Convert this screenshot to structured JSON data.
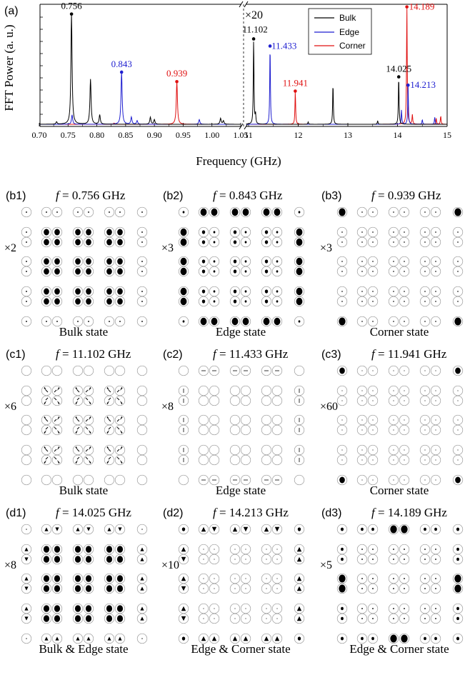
{
  "panel_a": {
    "label": "(a)",
    "ylabel": "FFT Power (a. u.)",
    "xlabel": "Frequency (GHz)",
    "scale_note": "×20",
    "legend": [
      {
        "name": "Bulk",
        "color": "#000000"
      },
      {
        "name": "Edge",
        "color": "#1f1fd0"
      },
      {
        "name": "Corner",
        "color": "#e01010"
      }
    ],
    "ticks_left": [
      "0.70",
      "0.75",
      "0.80",
      "0.85",
      "0.90",
      "0.95",
      "1.00",
      "1.05"
    ],
    "ticks_right": [
      "11",
      "12",
      "13",
      "14",
      "15"
    ]
  },
  "chart_data": {
    "type": "line",
    "xlabel": "Frequency (GHz)",
    "ylabel": "FFT Power (a. u.)",
    "x_ranges": [
      [
        0.7,
        1.05
      ],
      [
        10.95,
        15.0
      ]
    ],
    "right_segment_scale": 20,
    "peaks": [
      {
        "x": 0.756,
        "series": "Bulk",
        "label": "0.756"
      },
      {
        "x": 0.843,
        "series": "Edge",
        "label": "0.843"
      },
      {
        "x": 0.939,
        "series": "Corner",
        "label": "0.939"
      },
      {
        "x": 11.102,
        "series": "Bulk",
        "label": "11.102"
      },
      {
        "x": 11.433,
        "series": "Edge",
        "label": "11.433"
      },
      {
        "x": 11.941,
        "series": "Corner",
        "label": "11.941"
      },
      {
        "x": 14.025,
        "series": "Bulk",
        "label": "14.025"
      },
      {
        "x": 14.189,
        "series": "Corner",
        "label": "14.189"
      },
      {
        "x": 14.213,
        "series": "Edge",
        "label": "14.213"
      }
    ],
    "legend_position": "top-right",
    "grid": false
  },
  "panels": [
    {
      "id": "b1",
      "freq": "0.756 GHz",
      "mult": "×2",
      "state": "Bulk state"
    },
    {
      "id": "b2",
      "freq": "0.843 GHz",
      "mult": "×3",
      "state": "Edge state"
    },
    {
      "id": "b3",
      "freq": "0.939 GHz",
      "mult": "×3",
      "state": "Corner state"
    },
    {
      "id": "c1",
      "freq": "11.102 GHz",
      "mult": "×6",
      "state": "Bulk state"
    },
    {
      "id": "c2",
      "freq": "11.433 GHz",
      "mult": "×8",
      "state": "Edge state"
    },
    {
      "id": "c3",
      "freq": "11.941 GHz",
      "mult": "×60",
      "state": "Corner state"
    },
    {
      "id": "d1",
      "freq": "14.025 GHz",
      "mult": "×8",
      "state": "Bulk & Edge state"
    },
    {
      "id": "d2",
      "freq": "14.213 GHz",
      "mult": "×10",
      "state": "Edge & Corner state"
    },
    {
      "id": "d3",
      "freq": "14.189 GHz",
      "mult": "×5",
      "state": "Edge & Corner state"
    }
  ],
  "f_prefix": "f"
}
